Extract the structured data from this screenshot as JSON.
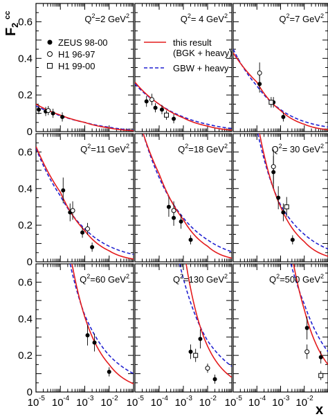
{
  "chart_data": {
    "type": "scatter",
    "y_axis_title": "F",
    "y_axis_title_sub": "2",
    "y_axis_title_sup": "cc",
    "x_axis_title": "x",
    "x_scale": "log",
    "xlim": [
      1e-05,
      0.1
    ],
    "ylim": [
      0,
      0.7
    ],
    "y_ticks": [
      0,
      0.2,
      0.4,
      0.6
    ],
    "y_tick_labels": [
      "0",
      "0.2",
      "0.4",
      "0.6"
    ],
    "x_tick_labels": [
      {
        "base": "10",
        "exp": "-5"
      },
      {
        "base": "10",
        "exp": "-4"
      },
      {
        "base": "10",
        "exp": "-3"
      },
      {
        "base": "10",
        "exp": "-2"
      }
    ],
    "legend": [
      {
        "label": "ZEUS 98-00",
        "marker": "filled-circle"
      },
      {
        "label": "H1 96-97",
        "marker": "open-circle"
      },
      {
        "label": "H1 99-00",
        "marker": "open-square"
      },
      {
        "label": "this result",
        "label2": "(BGK + heavy)",
        "style": "solid",
        "color": "#e41a1c"
      },
      {
        "label": "GBW + heavy",
        "style": "dashed",
        "color": "#1f1fd0"
      }
    ],
    "colors": {
      "bgk": "#e41a1c",
      "gbw": "#1f1fd0",
      "marker": "#000000"
    },
    "panels": [
      {
        "q2_prefix": "Q",
        "q2_sup": "2",
        "q2_value": "=2 GeV",
        "q2_unit_sup": "2",
        "zeus": [
          [
            1.3e-05,
            0.12
          ],
          [
            2.5e-05,
            0.11
          ],
          [
            5e-05,
            0.1
          ],
          [
            0.00012,
            0.08
          ]
        ],
        "h1_circle": [
          [
            3.2e-05,
            0.115
          ]
        ],
        "h1_square": [],
        "bgk": [
          [
            1e-05,
            0.15
          ],
          [
            0.0001,
            0.09
          ],
          [
            0.001,
            0.05
          ],
          [
            0.01,
            0.02
          ],
          [
            0.1,
            0.005
          ]
        ],
        "gbw": [
          [
            1e-05,
            0.14
          ],
          [
            0.0001,
            0.087
          ],
          [
            0.001,
            0.05
          ],
          [
            0.01,
            0.024
          ],
          [
            0.1,
            0.008
          ]
        ]
      },
      {
        "q2_prefix": "Q",
        "q2_sup": "2",
        "q2_value": "= 4 GeV",
        "q2_unit_sup": "2",
        "zeus": [
          [
            3e-05,
            0.165
          ],
          [
            7e-05,
            0.13
          ],
          [
            0.00013,
            0.12
          ],
          [
            0.0004,
            0.07
          ]
        ],
        "h1_circle": [
          [
            5e-05,
            0.175
          ]
        ],
        "h1_square": [
          [
            0.0002,
            0.09
          ]
        ],
        "bgk": [
          [
            1e-05,
            0.27
          ],
          [
            0.0001,
            0.15
          ],
          [
            0.001,
            0.075
          ],
          [
            0.01,
            0.03
          ],
          [
            0.1,
            0.008
          ]
        ],
        "gbw": [
          [
            1e-05,
            0.26
          ],
          [
            0.0001,
            0.15
          ],
          [
            0.001,
            0.08
          ],
          [
            0.01,
            0.04
          ],
          [
            0.1,
            0.017
          ]
        ]
      },
      {
        "q2_prefix": "Q",
        "q2_sup": "2",
        "q2_value": "=7 GeV",
        "q2_unit_sup": "2",
        "zeus": [
          [
            0.00013,
            0.26
          ],
          [
            0.0005,
            0.16
          ],
          [
            0.0013,
            0.08
          ]
        ],
        "h1_circle": [
          [
            0.00013,
            0.32
          ]
        ],
        "h1_square": [
          [
            0.0004,
            0.16
          ]
        ],
        "bgk": [
          [
            1e-05,
            0.43
          ],
          [
            0.0001,
            0.27
          ],
          [
            0.001,
            0.115
          ],
          [
            0.01,
            0.04
          ],
          [
            0.1,
            0.01
          ]
        ],
        "gbw": [
          [
            1e-05,
            0.45
          ],
          [
            0.0001,
            0.25
          ],
          [
            0.001,
            0.12
          ],
          [
            0.01,
            0.055
          ],
          [
            0.1,
            0.025
          ]
        ]
      },
      {
        "q2_prefix": "Q",
        "q2_sup": "2",
        "q2_value": "=11 GeV",
        "q2_unit_sup": "2",
        "zeus": [
          [
            0.00013,
            0.39
          ],
          [
            0.00025,
            0.27
          ],
          [
            0.0008,
            0.16
          ],
          [
            0.002,
            0.08
          ]
        ],
        "h1_circle": [
          [
            0.00032,
            0.28
          ],
          [
            0.0013,
            0.18
          ]
        ],
        "h1_square": [],
        "bgk": [
          [
            1e-05,
            0.63
          ],
          [
            0.0001,
            0.38
          ],
          [
            0.001,
            0.17
          ],
          [
            0.01,
            0.06
          ],
          [
            0.1,
            0.015
          ]
        ],
        "gbw": [
          [
            1e-05,
            0.62
          ],
          [
            0.0001,
            0.36
          ],
          [
            0.001,
            0.18
          ],
          [
            0.01,
            0.085
          ],
          [
            0.1,
            0.04
          ]
        ]
      },
      {
        "q2_prefix": "Q",
        "q2_sup": "2",
        "q2_value": "=18 GeV",
        "q2_unit_sup": "2",
        "zeus": [
          [
            0.00025,
            0.3
          ],
          [
            0.0004,
            0.24
          ],
          [
            0.0008,
            0.22
          ],
          [
            0.002,
            0.12
          ]
        ],
        "h1_circle": [
          [
            0.0004,
            0.28
          ]
        ],
        "h1_square": [],
        "bgk": [
          [
            2.2e-05,
            0.7
          ],
          [
            0.0001,
            0.48
          ],
          [
            0.001,
            0.23
          ],
          [
            0.01,
            0.085
          ],
          [
            0.1,
            0.02
          ]
        ],
        "gbw": [
          [
            2.2e-05,
            0.7
          ],
          [
            0.0001,
            0.46
          ],
          [
            0.001,
            0.24
          ],
          [
            0.01,
            0.12
          ],
          [
            0.1,
            0.055
          ]
        ]
      },
      {
        "q2_prefix": "Q",
        "q2_sup": "2",
        "q2_value": "= 30 GeV",
        "q2_unit_sup": "2",
        "zeus": [
          [
            0.0005,
            0.49
          ],
          [
            0.0008,
            0.35
          ],
          [
            0.0013,
            0.27
          ],
          [
            0.0032,
            0.12
          ]
        ],
        "h1_circle": [
          [
            0.0005,
            0.52
          ]
        ],
        "h1_square": [
          [
            0.0018,
            0.3
          ]
        ],
        "bgk": [
          [
            0.00013,
            0.7
          ],
          [
            0.001,
            0.3
          ],
          [
            0.01,
            0.11
          ],
          [
            0.1,
            0.03
          ]
        ],
        "gbw": [
          [
            0.00011,
            0.7
          ],
          [
            0.001,
            0.31
          ],
          [
            0.01,
            0.15
          ],
          [
            0.1,
            0.07
          ]
        ]
      },
      {
        "q2_prefix": "Q",
        "q2_sup": "2",
        "q2_value": "=60 GeV",
        "q2_unit_sup": "2",
        "zeus": [
          [
            0.0013,
            0.31
          ],
          [
            0.0025,
            0.27
          ],
          [
            0.01,
            0.11
          ]
        ],
        "h1_circle": [],
        "h1_square": [],
        "bgk": [
          [
            0.0003,
            0.7
          ],
          [
            0.001,
            0.41
          ],
          [
            0.01,
            0.15
          ],
          [
            0.1,
            0.045
          ]
        ],
        "gbw": [
          [
            0.00025,
            0.7
          ],
          [
            0.001,
            0.42
          ],
          [
            0.01,
            0.2
          ],
          [
            0.1,
            0.1
          ]
        ]
      },
      {
        "q2_prefix": "Q",
        "q2_sup": "2",
        "q2_value": "=130 GeV",
        "q2_unit_sup": "2",
        "zeus": [
          [
            0.002,
            0.22
          ],
          [
            0.005,
            0.29
          ],
          [
            0.02,
            0.07
          ]
        ],
        "h1_circle": [
          [
            0.01,
            0.13
          ]
        ],
        "h1_square": [
          [
            0.0032,
            0.2
          ]
        ],
        "bgk": [
          [
            0.0013,
            0.7
          ],
          [
            0.01,
            0.25
          ],
          [
            0.1,
            0.08
          ]
        ],
        "gbw": [
          [
            0.0007,
            0.7
          ],
          [
            0.01,
            0.28
          ],
          [
            0.1,
            0.14
          ]
        ]
      },
      {
        "q2_prefix": "Q",
        "q2_sup": "2",
        "q2_value": "=500 GeV",
        "q2_unit_sup": "2",
        "zeus": [
          [
            0.013,
            0.35
          ],
          [
            0.05,
            0.19
          ]
        ],
        "h1_circle": [
          [
            0.013,
            0.22
          ]
        ],
        "h1_square": [
          [
            0.05,
            0.09
          ]
        ],
        "bgk": [
          [
            0.0035,
            0.7
          ],
          [
            0.01,
            0.45
          ],
          [
            0.1,
            0.15
          ]
        ],
        "gbw": [
          [
            0.0027,
            0.7
          ],
          [
            0.01,
            0.48
          ],
          [
            0.1,
            0.22
          ]
        ]
      }
    ]
  }
}
